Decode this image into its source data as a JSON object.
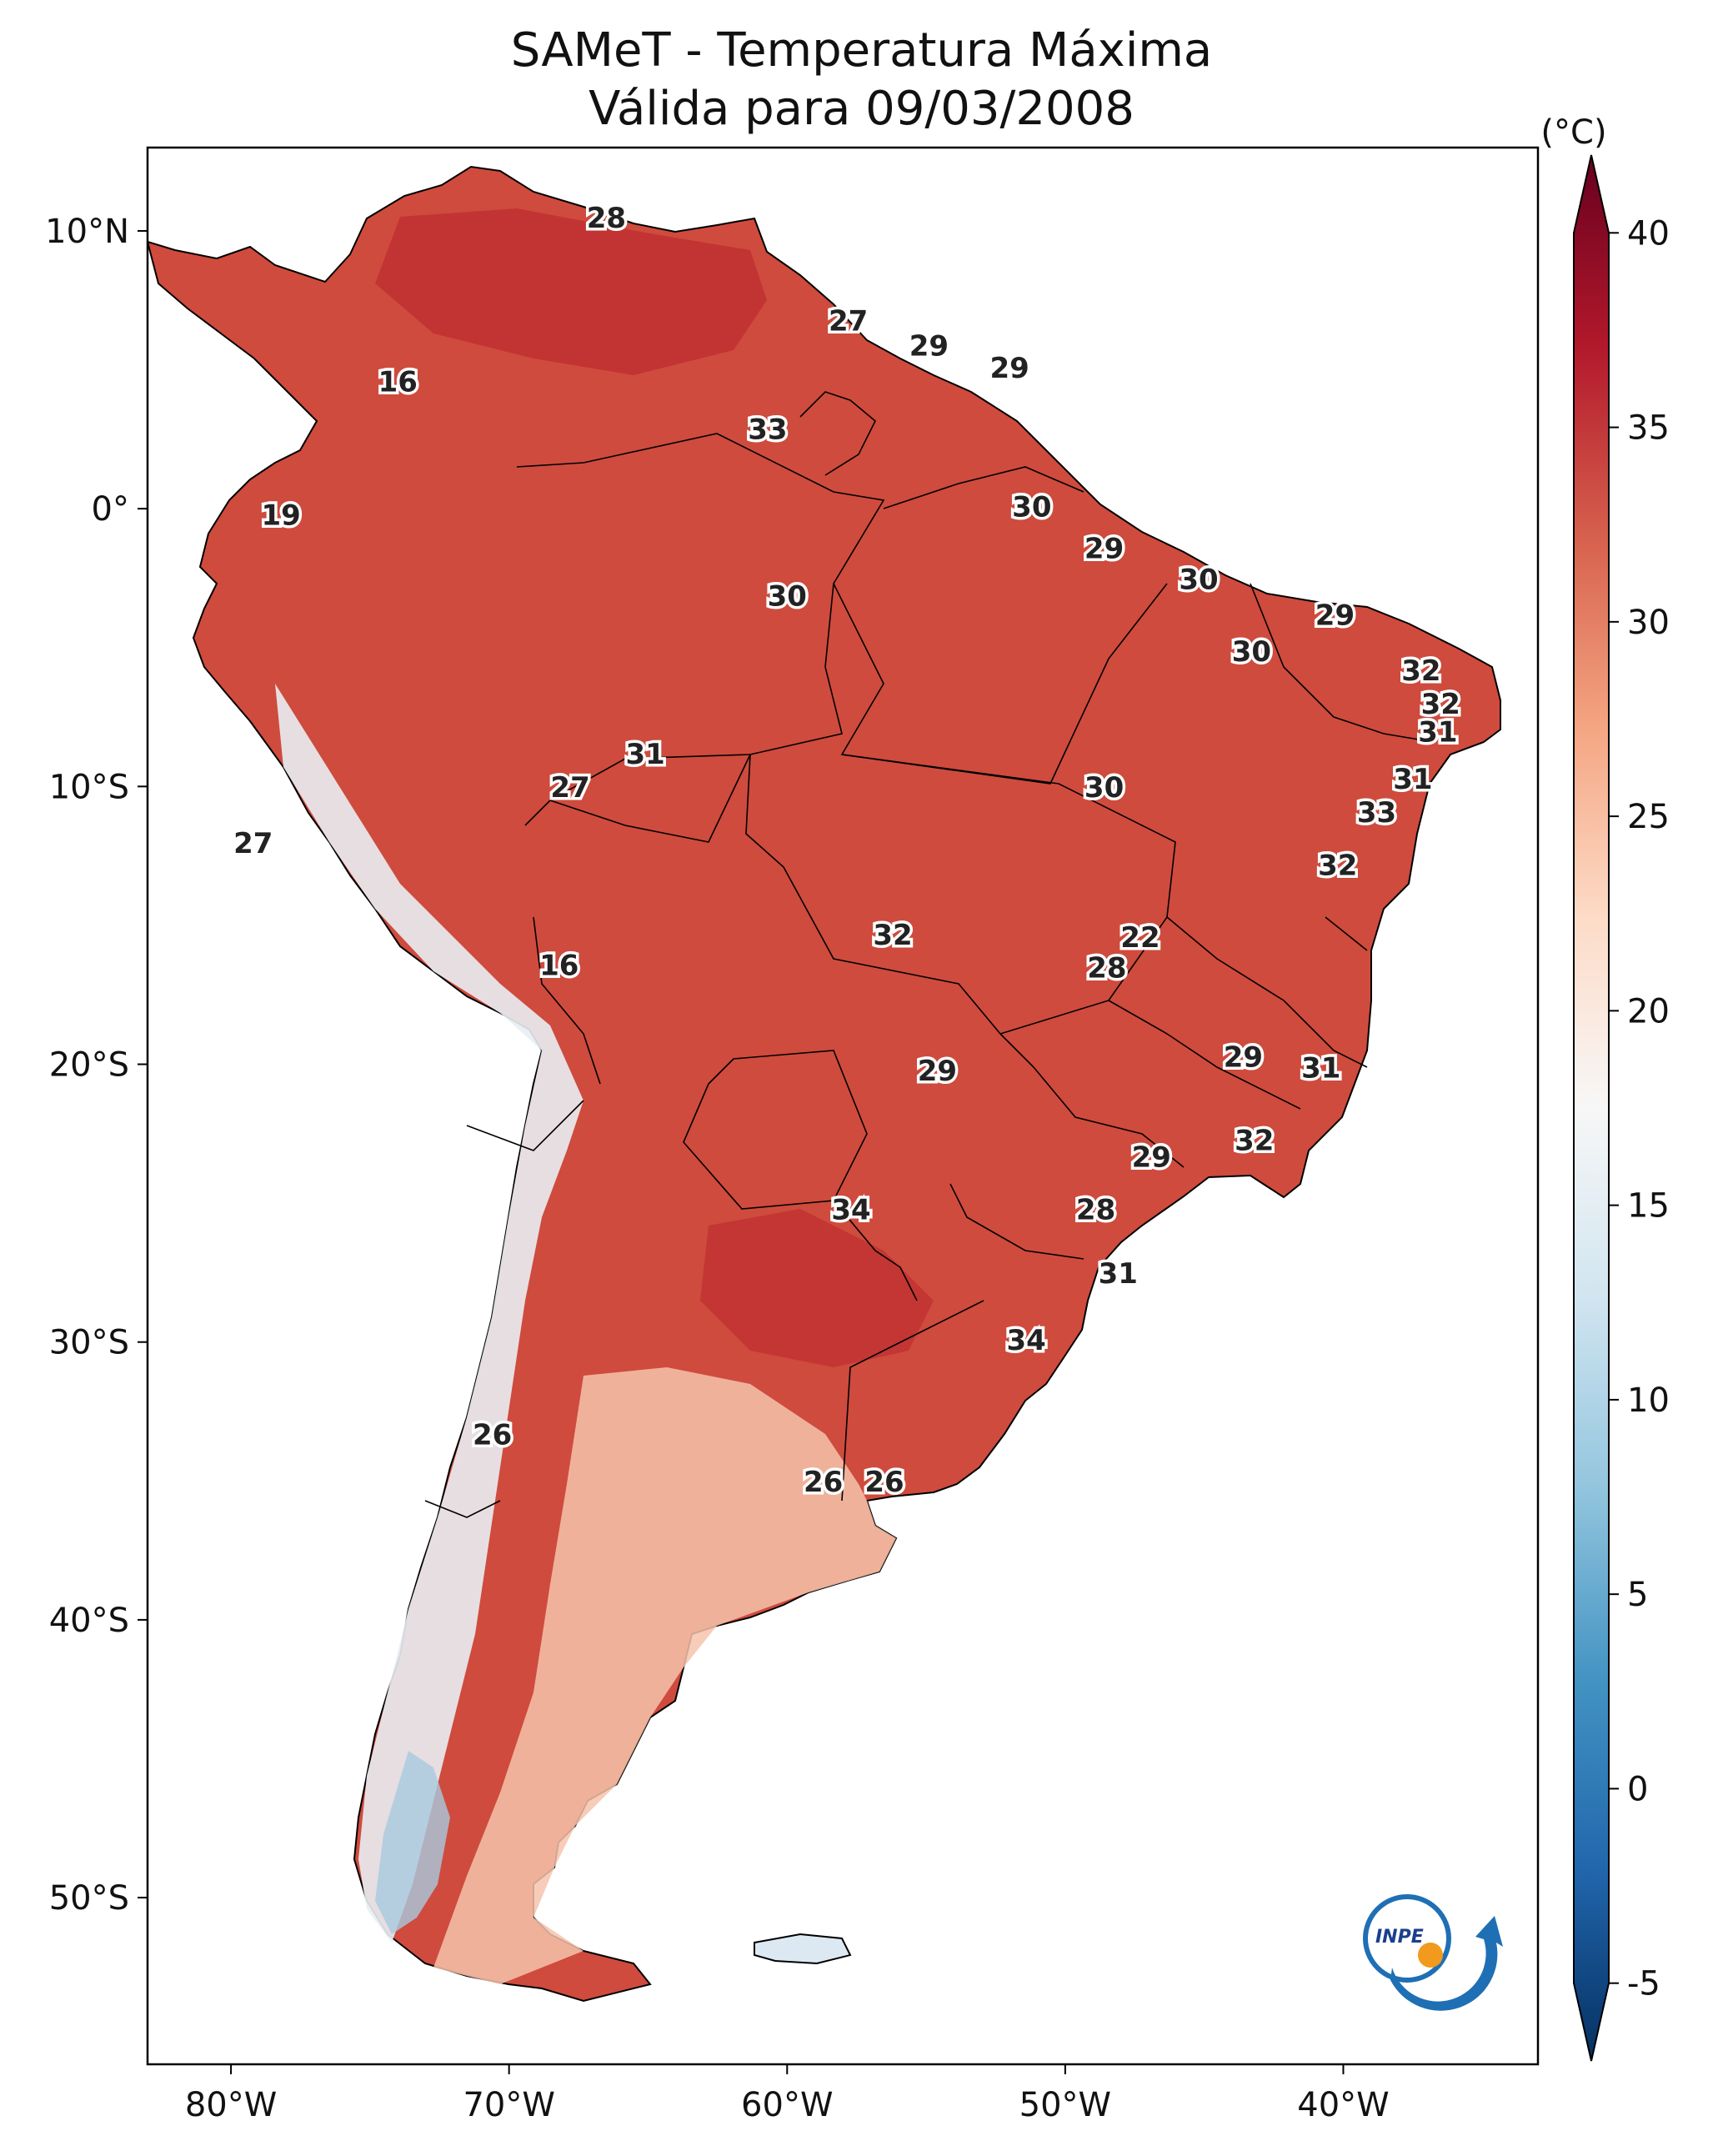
{
  "title": {
    "line1": "SAMeT - Temperatura Máxima",
    "line2": "Válida para 09/03/2008"
  },
  "map": {
    "lon_ticks": [
      "80°W",
      "70°W",
      "60°W",
      "50°W",
      "40°W"
    ],
    "lat_ticks": [
      "10°N",
      "0°",
      "10°S",
      "20°S",
      "30°S",
      "40°S",
      "50°S"
    ],
    "value_labels": [
      {
        "v": "28",
        "lon": -66.5,
        "lat": 10.4
      },
      {
        "v": "16",
        "lon": -74.0,
        "lat": 4.5
      },
      {
        "v": "27",
        "lon": -57.8,
        "lat": 6.7
      },
      {
        "v": "29",
        "lon": -54.9,
        "lat": 5.8
      },
      {
        "v": "29",
        "lon": -52.0,
        "lat": 5.0
      },
      {
        "v": "33",
        "lon": -60.7,
        "lat": 2.8
      },
      {
        "v": "19",
        "lon": -78.2,
        "lat": -0.3
      },
      {
        "v": "30",
        "lon": -51.2,
        "lat": 0.0
      },
      {
        "v": "29",
        "lon": -48.6,
        "lat": -1.5
      },
      {
        "v": "30",
        "lon": -60.0,
        "lat": -3.2
      },
      {
        "v": "30",
        "lon": -45.2,
        "lat": -2.6
      },
      {
        "v": "29",
        "lon": -40.3,
        "lat": -3.9
      },
      {
        "v": "30",
        "lon": -43.3,
        "lat": -5.2
      },
      {
        "v": "32",
        "lon": -37.2,
        "lat": -5.9
      },
      {
        "v": "32",
        "lon": -36.5,
        "lat": -7.1
      },
      {
        "v": "31",
        "lon": -36.6,
        "lat": -8.1
      },
      {
        "v": "31",
        "lon": -65.1,
        "lat": -8.9
      },
      {
        "v": "27",
        "lon": -67.8,
        "lat": -10.1
      },
      {
        "v": "31",
        "lon": -37.5,
        "lat": -9.8
      },
      {
        "v": "30",
        "lon": -48.6,
        "lat": -10.1
      },
      {
        "v": "33",
        "lon": -38.8,
        "lat": -11.0
      },
      {
        "v": "27",
        "lon": -79.2,
        "lat": -12.1
      },
      {
        "v": "32",
        "lon": -40.2,
        "lat": -12.9
      },
      {
        "v": "22",
        "lon": -47.3,
        "lat": -15.5
      },
      {
        "v": "32",
        "lon": -56.2,
        "lat": -15.4
      },
      {
        "v": "28",
        "lon": -48.5,
        "lat": -16.6
      },
      {
        "v": "16",
        "lon": -68.2,
        "lat": -16.5
      },
      {
        "v": "29",
        "lon": -43.6,
        "lat": -19.8
      },
      {
        "v": "29",
        "lon": -54.6,
        "lat": -20.3
      },
      {
        "v": "31",
        "lon": -40.8,
        "lat": -20.2
      },
      {
        "v": "32",
        "lon": -43.2,
        "lat": -22.8
      },
      {
        "v": "29",
        "lon": -46.9,
        "lat": -23.4
      },
      {
        "v": "34",
        "lon": -57.7,
        "lat": -25.3
      },
      {
        "v": "28",
        "lon": -48.9,
        "lat": -25.3
      },
      {
        "v": "31",
        "lon": -48.1,
        "lat": -27.6
      },
      {
        "v": "34",
        "lon": -51.4,
        "lat": -30.0
      },
      {
        "v": "26",
        "lon": -70.6,
        "lat": -33.4
      },
      {
        "v": "26",
        "lon": -58.7,
        "lat": -35.1
      },
      {
        "v": "26",
        "lon": -56.5,
        "lat": -35.1
      }
    ]
  },
  "colorbar": {
    "unit": "(°C)",
    "ticks": [
      "40",
      "35",
      "30",
      "25",
      "20",
      "15",
      "10",
      "5",
      "0",
      "-5"
    ],
    "tick_values": [
      40,
      35,
      30,
      25,
      20,
      15,
      10,
      5,
      0,
      -5
    ],
    "range": [
      -7,
      42
    ],
    "colors": [
      "#053061",
      "#2166ac",
      "#4393c3",
      "#92c5de",
      "#d1e5f0",
      "#f7f7f7",
      "#fddbc7",
      "#f4a582",
      "#d6604d",
      "#b2182b",
      "#67001f"
    ]
  },
  "logo": {
    "text": "INPE"
  }
}
